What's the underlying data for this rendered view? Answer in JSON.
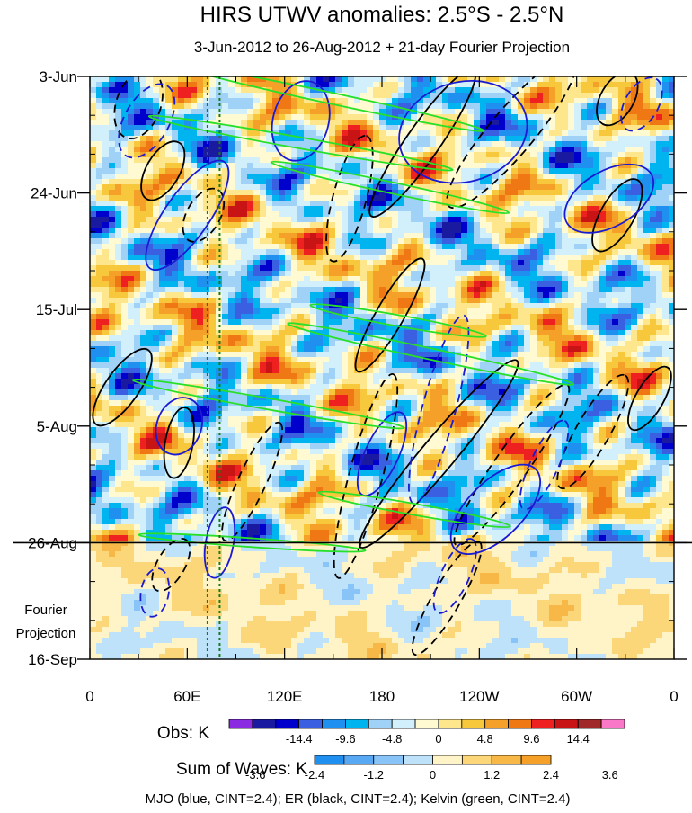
{
  "chart_data": {
    "type": "heatmap",
    "title": "HIRS UTWV anomalies: 2.5°S - 2.5°N",
    "subtitle": "3-Jun-2012 to 26-Aug-2012 + 21-day Fourier Projection",
    "x_ticks": [
      "0",
      "60E",
      "120E",
      "180",
      "120W",
      "60W",
      "0"
    ],
    "x_tick_longitudes": [
      0,
      60,
      120,
      180,
      240,
      300,
      360
    ],
    "x_range_deg": [
      0,
      360
    ],
    "y_ticks": [
      "3-Jun",
      "24-Jun",
      "15-Jul",
      "5-Aug",
      "26-Aug",
      "16-Sep"
    ],
    "y_tick_days": [
      0,
      21,
      42,
      63,
      84,
      105
    ],
    "y_range_days": [
      0,
      105
    ],
    "projection_start_day": 84,
    "projection_label": [
      "Fourier",
      "Projection"
    ],
    "reference_longitudes": [
      72.5,
      80
    ],
    "obs_colorbar": {
      "label": "Obs: K",
      "tick_labels": [
        "-14.4",
        "-9.6",
        "-4.8",
        "0",
        "4.8",
        "9.6",
        "14.4"
      ],
      "colors": [
        "#8a2be2",
        "#1a1aa0",
        "#0000cd",
        "#3a5fe0",
        "#2090f0",
        "#00b4f0",
        "#a0d2f8",
        "#d2f0fc",
        "#fffad2",
        "#fde68c",
        "#f8c83c",
        "#f5a028",
        "#f07814",
        "#ee2020",
        "#c81414",
        "#a02828",
        "#fa78c8"
      ]
    },
    "waves_colorbar": {
      "label": "Sum of Waves: K",
      "tick_labels": [
        "-3.6",
        "-2.4",
        "-1.2",
        "0",
        "1.2",
        "2.4",
        "3.6"
      ],
      "colors": [
        "#2090f0",
        "#58a8f4",
        "#88c4f8",
        "#bde2fa",
        "#fff3c8",
        "#fbd77a",
        "#f8b847",
        "#f5a028"
      ]
    },
    "footer": "MJO (blue, CINT=2.4); ER (black, CINT=2.4); Kelvin (green, CINT=2.4)",
    "contours": [
      {
        "series": "ER",
        "lon": 30,
        "day": 5,
        "sign": -1,
        "angle": -70,
        "rx_deg": 22,
        "ry_days": 4
      },
      {
        "series": "ER",
        "lon": 45,
        "day": 17,
        "sign": 1,
        "angle": -60,
        "rx_deg": 20,
        "ry_days": 3
      },
      {
        "series": "ER",
        "lon": 70,
        "day": 25,
        "sign": -1,
        "angle": -60,
        "rx_deg": 18,
        "ry_days": 3
      },
      {
        "series": "ER",
        "lon": 160,
        "day": 22,
        "sign": -1,
        "angle": -75,
        "rx_deg": 40,
        "ry_days": 3
      },
      {
        "series": "ER",
        "lon": 205,
        "day": 12,
        "sign": 1,
        "angle": -55,
        "rx_deg": 55,
        "ry_days": 3
      },
      {
        "series": "ER",
        "lon": 260,
        "day": 10,
        "sign": -1,
        "angle": -50,
        "rx_deg": 60,
        "ry_days": 4
      },
      {
        "series": "ER",
        "lon": 325,
        "day": 25,
        "sign": 1,
        "angle": -60,
        "rx_deg": 25,
        "ry_days": 3
      },
      {
        "series": "ER",
        "lon": 325,
        "day": 4,
        "sign": 1,
        "angle": -60,
        "rx_deg": 18,
        "ry_days": 3
      },
      {
        "series": "ER",
        "lon": 185,
        "day": 43,
        "sign": 1,
        "angle": -60,
        "rx_deg": 40,
        "ry_days": 2.5
      },
      {
        "series": "ER",
        "lon": 20,
        "day": 56,
        "sign": 1,
        "angle": -55,
        "rx_deg": 28,
        "ry_days": 3
      },
      {
        "series": "ER",
        "lon": 55,
        "day": 66,
        "sign": 1,
        "angle": -80,
        "rx_deg": 22,
        "ry_days": 2.5
      },
      {
        "series": "ER",
        "lon": 100,
        "day": 73,
        "sign": -1,
        "angle": -65,
        "rx_deg": 40,
        "ry_days": 2.5
      },
      {
        "series": "ER",
        "lon": 170,
        "day": 72,
        "sign": -1,
        "angle": -75,
        "rx_deg": 65,
        "ry_days": 3
      },
      {
        "series": "ER",
        "lon": 215,
        "day": 68,
        "sign": 1,
        "angle": -50,
        "rx_deg": 75,
        "ry_days": 3
      },
      {
        "series": "ER",
        "lon": 260,
        "day": 70,
        "sign": -1,
        "angle": -55,
        "rx_deg": 60,
        "ry_days": 3
      },
      {
        "series": "ER",
        "lon": 310,
        "day": 64,
        "sign": -1,
        "angle": -60,
        "rx_deg": 40,
        "ry_days": 3
      },
      {
        "series": "ER",
        "lon": 345,
        "day": 58,
        "sign": 1,
        "angle": -60,
        "rx_deg": 22,
        "ry_days": 2.5
      },
      {
        "series": "ER",
        "lon": 220,
        "day": 94,
        "sign": -1,
        "angle": -60,
        "rx_deg": 40,
        "ry_days": 2.5
      },
      {
        "series": "ER",
        "lon": 50,
        "day": 88,
        "sign": -1,
        "angle": -60,
        "rx_deg": 18,
        "ry_days": 2.5
      },
      {
        "series": "MJO",
        "lon": 35,
        "day": 8,
        "sign": -1,
        "angle": -60,
        "rx_deg": 25,
        "ry_days": 4
      },
      {
        "series": "MJO",
        "lon": 60,
        "day": 25,
        "sign": 1,
        "angle": -55,
        "rx_deg": 40,
        "ry_days": 4
      },
      {
        "series": "MJO",
        "lon": 130,
        "day": 8,
        "sign": 1,
        "angle": -75,
        "rx_deg": 25,
        "ry_days": 5
      },
      {
        "series": "MJO",
        "lon": 230,
        "day": 10,
        "sign": 1,
        "angle": -15,
        "rx_deg": 40,
        "ry_days": 9
      },
      {
        "series": "MJO",
        "lon": 340,
        "day": 5,
        "sign": -1,
        "angle": -60,
        "rx_deg": 18,
        "ry_days": 3
      },
      {
        "series": "MJO",
        "lon": 320,
        "day": 22,
        "sign": 1,
        "angle": -30,
        "rx_deg": 30,
        "ry_days": 5
      },
      {
        "series": "MJO",
        "lon": 215,
        "day": 60,
        "sign": -1,
        "angle": -75,
        "rx_deg": 60,
        "ry_days": 3
      },
      {
        "series": "MJO",
        "lon": 180,
        "day": 68,
        "sign": 1,
        "angle": -65,
        "rx_deg": 28,
        "ry_days": 3
      },
      {
        "series": "MJO",
        "lon": 55,
        "day": 63,
        "sign": 1,
        "angle": -70,
        "rx_deg": 18,
        "ry_days": 4
      },
      {
        "series": "MJO",
        "lon": 250,
        "day": 78,
        "sign": 1,
        "angle": -45,
        "rx_deg": 35,
        "ry_days": 5
      },
      {
        "series": "MJO",
        "lon": 280,
        "day": 70,
        "sign": -1,
        "angle": -65,
        "rx_deg": 30,
        "ry_days": 2.5
      },
      {
        "series": "MJO",
        "lon": 80,
        "day": 84,
        "sign": 1,
        "angle": -80,
        "rx_deg": 22,
        "ry_days": 2.5
      },
      {
        "series": "MJO",
        "lon": 40,
        "day": 93,
        "sign": -1,
        "angle": -80,
        "rx_deg": 15,
        "ry_days": 2.5
      },
      {
        "series": "MJO",
        "lon": 225,
        "day": 90,
        "sign": -1,
        "angle": -65,
        "rx_deg": 25,
        "ry_days": 2.5
      },
      {
        "series": "Kelvin",
        "lon": 150,
        "day": 4,
        "sign": 1,
        "angle": 12,
        "rx_deg": 95,
        "ry_days": 1
      },
      {
        "series": "Kelvin",
        "lon": 130,
        "day": 12,
        "sign": 1,
        "angle": 10,
        "rx_deg": 95,
        "ry_days": 1
      },
      {
        "series": "Kelvin",
        "lon": 185,
        "day": 20,
        "sign": 1,
        "angle": 12,
        "rx_deg": 75,
        "ry_days": 1
      },
      {
        "series": "Kelvin",
        "lon": 110,
        "day": 59,
        "sign": 1,
        "angle": 10,
        "rx_deg": 85,
        "ry_days": 1
      },
      {
        "series": "Kelvin",
        "lon": 210,
        "day": 50,
        "sign": 1,
        "angle": 12,
        "rx_deg": 90,
        "ry_days": 1
      },
      {
        "series": "Kelvin",
        "lon": 190,
        "day": 44,
        "sign": 1,
        "angle": 10,
        "rx_deg": 55,
        "ry_days": 1
      },
      {
        "series": "Kelvin",
        "lon": 200,
        "day": 78,
        "sign": 1,
        "angle": 10,
        "rx_deg": 60,
        "ry_days": 1
      },
      {
        "series": "Kelvin",
        "lon": 100,
        "day": 84,
        "sign": 1,
        "angle": 4,
        "rx_deg": 70,
        "ry_days": 0.8
      }
    ]
  }
}
